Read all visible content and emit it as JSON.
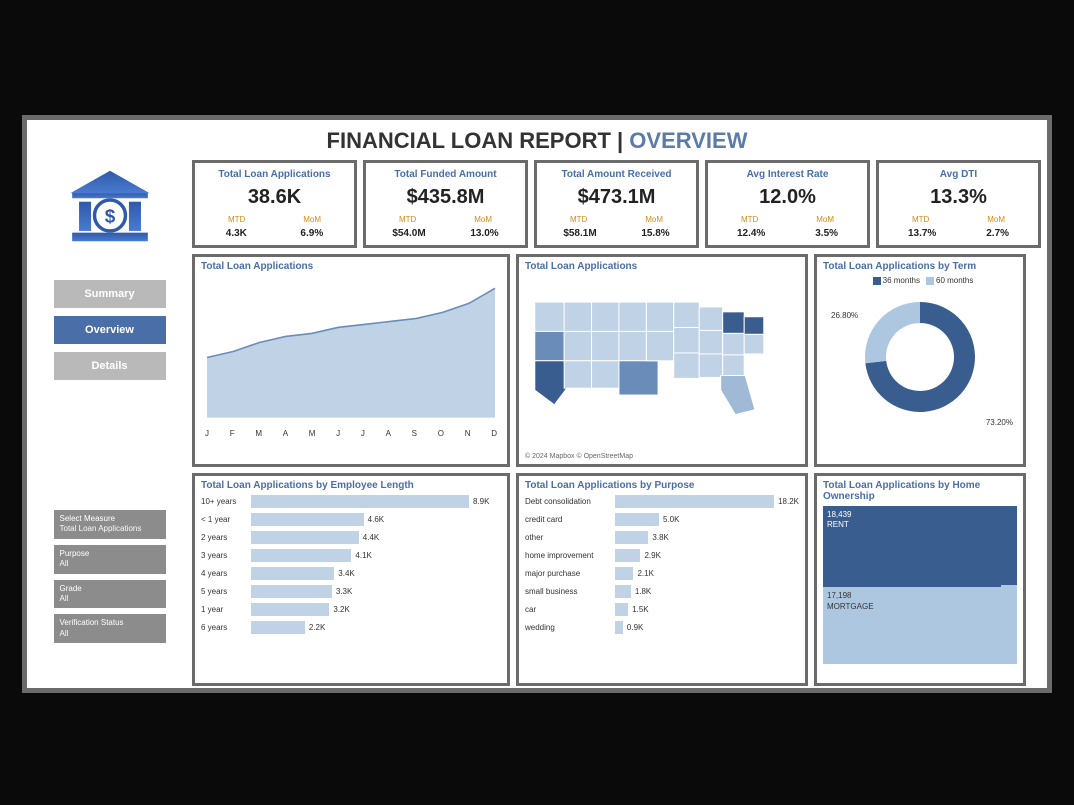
{
  "header": {
    "title_prefix": "FINANCIAL LOAN REPORT | ",
    "title_accent": "OVERVIEW"
  },
  "colors": {
    "accent": "#4a6ea8",
    "panel_border": "#6b6b6b",
    "mtd_mom": "#d68b1a",
    "bar_fill": "#c0d2e6",
    "area_fill": "#c0d2e6",
    "area_stroke": "#6a8cb8",
    "donut_dark": "#3a5d8f",
    "donut_light": "#aec7e0",
    "tree_rent": "#3a5d8f",
    "tree_mort": "#aec7e0",
    "tree_own1": "#3a5d8f",
    "tree_own2": "#aec7e0"
  },
  "nav": [
    {
      "label": "Summary",
      "active": false
    },
    {
      "label": "Overview",
      "active": true
    },
    {
      "label": "Details",
      "active": false
    }
  ],
  "filters": [
    {
      "label": "Select Measure",
      "value": "Total Loan Applications"
    },
    {
      "label": "Purpose",
      "value": "All"
    },
    {
      "label": "Grade",
      "value": "All"
    },
    {
      "label": "Verification Status",
      "value": "All"
    }
  ],
  "kpis": [
    {
      "title": "Total Loan Applications",
      "value": "38.6K",
      "mtd_label": "MTD",
      "mom_label": "MoM",
      "mtd": "4.3K",
      "mom": "6.9%"
    },
    {
      "title": "Total Funded Amount",
      "value": "$435.8M",
      "mtd_label": "MTD",
      "mom_label": "MoM",
      "mtd": "$54.0M",
      "mom": "13.0%"
    },
    {
      "title": "Total Amount Received",
      "value": "$473.1M",
      "mtd_label": "MTD",
      "mom_label": "MoM",
      "mtd": "$58.1M",
      "mom": "15.8%"
    },
    {
      "title": "Avg Interest Rate",
      "value": "12.0%",
      "mtd_label": "MTD",
      "mom_label": "MoM",
      "mtd": "12.4%",
      "mom": "3.5%"
    },
    {
      "title": "Avg DTI",
      "value": "13.3%",
      "mtd_label": "MTD",
      "mom_label": "MoM",
      "mtd": "13.7%",
      "mom": "2.7%"
    }
  ],
  "area_chart": {
    "title": "Total Loan Applications",
    "months": [
      "J",
      "F",
      "M",
      "A",
      "M",
      "J",
      "J",
      "A",
      "S",
      "O",
      "N",
      "D"
    ],
    "values": [
      2.0,
      2.2,
      2.5,
      2.7,
      2.8,
      3.0,
      3.1,
      3.2,
      3.3,
      3.5,
      3.8,
      4.3
    ],
    "ymax": 4.5
  },
  "map_chart": {
    "title": "Total Loan Applications",
    "attribution": "© 2024 Mapbox © OpenStreetMap"
  },
  "donut": {
    "title": "Total Loan Applications by Term",
    "legend": [
      {
        "label": "36 months",
        "color": "#3a5d8f"
      },
      {
        "label": "60 months",
        "color": "#aec7e0"
      }
    ],
    "slices": [
      {
        "label": "73.20%",
        "value": 73.2,
        "color": "#3a5d8f"
      },
      {
        "label": "26.80%",
        "value": 26.8,
        "color": "#aec7e0"
      }
    ]
  },
  "emp_bars": {
    "title": "Total Loan Applications by Employee Length",
    "label_width": 48,
    "max": 8.9,
    "rows": [
      {
        "label": "10+ years",
        "value": 8.9,
        "text": "8.9K"
      },
      {
        "label": "< 1 year",
        "value": 4.6,
        "text": "4.6K"
      },
      {
        "label": "2 years",
        "value": 4.4,
        "text": "4.4K"
      },
      {
        "label": "3 years",
        "value": 4.1,
        "text": "4.1K"
      },
      {
        "label": "4 years",
        "value": 3.4,
        "text": "3.4K"
      },
      {
        "label": "5 years",
        "value": 3.3,
        "text": "3.3K"
      },
      {
        "label": "1 year",
        "value": 3.2,
        "text": "3.2K"
      },
      {
        "label": "6 years",
        "value": 2.2,
        "text": "2.2K"
      }
    ]
  },
  "purpose_bars": {
    "title": "Total Loan Applications by Purpose",
    "label_width": 88,
    "max": 18.2,
    "rows": [
      {
        "label": "Debt consolidation",
        "value": 18.2,
        "text": "18.2K"
      },
      {
        "label": "credit card",
        "value": 5.0,
        "text": "5.0K"
      },
      {
        "label": "other",
        "value": 3.8,
        "text": "3.8K"
      },
      {
        "label": "home improvement",
        "value": 2.9,
        "text": "2.9K"
      },
      {
        "label": "major purchase",
        "value": 2.1,
        "text": "2.1K"
      },
      {
        "label": "small business",
        "value": 1.8,
        "text": "1.8K"
      },
      {
        "label": "car",
        "value": 1.5,
        "text": "1.5K"
      },
      {
        "label": "wedding",
        "value": 0.9,
        "text": "0.9K"
      }
    ]
  },
  "home_ownership": {
    "title": "Total Loan Applications by Home Ownership",
    "cells": [
      {
        "count": "18,439",
        "label": "RENT",
        "flex": 1.07,
        "color": "#3a5d8f",
        "text_color": "#ffffff"
      },
      {
        "count": "17,198",
        "label": "MORTGAGE",
        "flex": 1.0,
        "color": "#aec7e0",
        "text_color": "#333333"
      }
    ],
    "side": [
      {
        "color": "#3a5d8f",
        "flex": 1
      },
      {
        "color": "#aec7e0",
        "flex": 1
      }
    ]
  }
}
